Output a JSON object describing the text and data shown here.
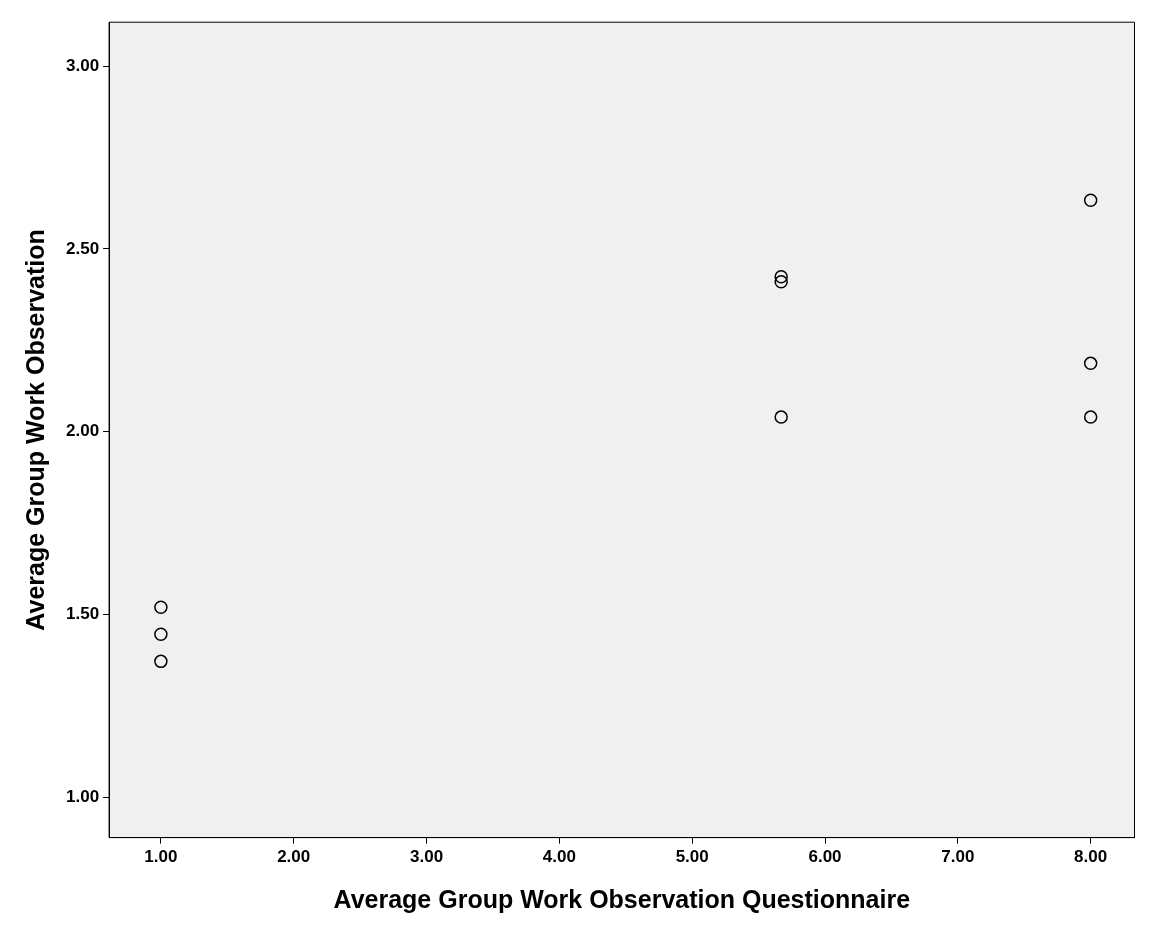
{
  "chart_data": {
    "type": "scatter",
    "xlabel": "Average Group Work Observation Questionnaire",
    "ylabel": "Average Group Work Observation",
    "x": [
      1,
      1,
      1,
      5.67,
      5.67,
      5.67,
      8,
      8,
      8
    ],
    "values": [
      1.52,
      1.446,
      1.372,
      2.424,
      2.41,
      2.04,
      2.633,
      2.187,
      2.04
    ],
    "color": "#000000",
    "marker": "circle",
    "grid": false,
    "legend": false,
    "xlim": [
      0.61,
      8.33
    ],
    "ylim": [
      0.89,
      3.12
    ],
    "xticks": [
      {
        "value": 1,
        "label": "1.00"
      },
      {
        "value": 2,
        "label": "2.00"
      },
      {
        "value": 3,
        "label": "3.00"
      },
      {
        "value": 4,
        "label": "4.00"
      },
      {
        "value": 5,
        "label": "5.00"
      },
      {
        "value": 6,
        "label": "6.00"
      },
      {
        "value": 7,
        "label": "7.00"
      },
      {
        "value": 8,
        "label": "8.00"
      }
    ],
    "yticks": [
      {
        "value": 1,
        "label": "1.00"
      },
      {
        "value": 1.5,
        "label": "1.50"
      },
      {
        "value": 2,
        "label": "2.00"
      },
      {
        "value": 2.5,
        "label": "2.50"
      },
      {
        "value": 3,
        "label": "3.00"
      }
    ]
  }
}
